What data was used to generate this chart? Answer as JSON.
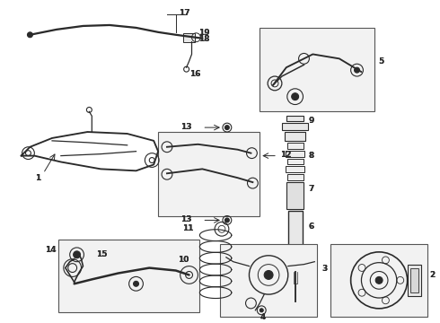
{
  "bg_color": "#ffffff",
  "line_color": "#2a2a2a",
  "label_fontsize": 6.5,
  "fig_w": 4.9,
  "fig_h": 3.6,
  "dpi": 100
}
